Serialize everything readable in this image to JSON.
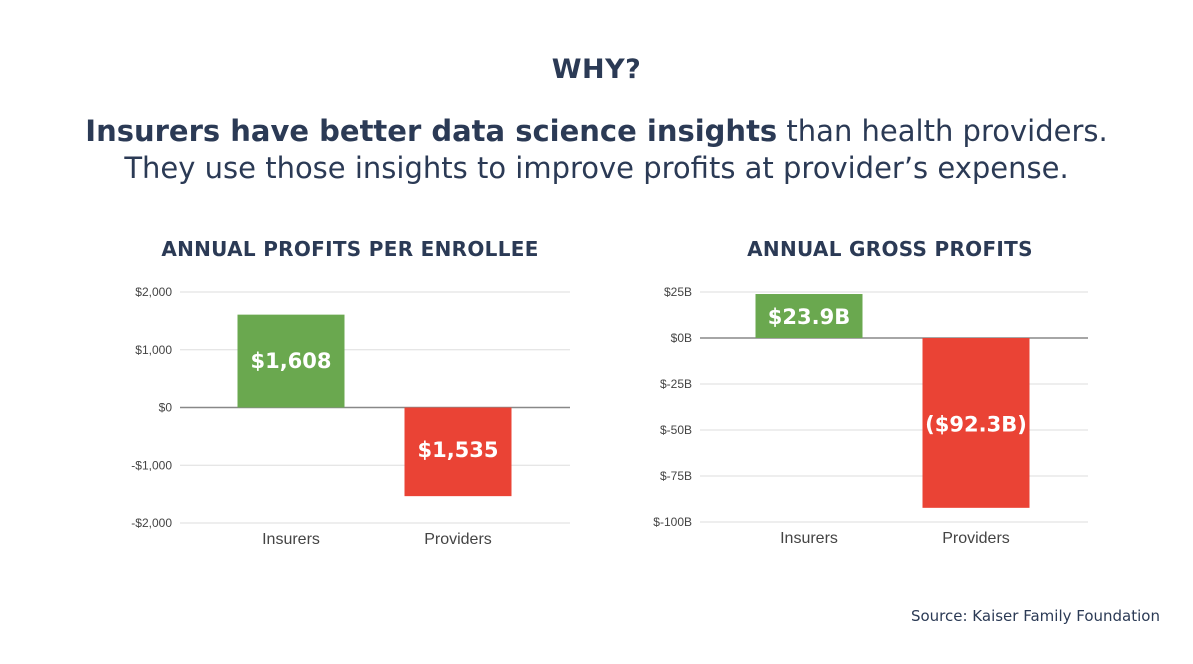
{
  "heading": "WHY?",
  "subheading": {
    "line1_bold": "Insurers have better data science insights",
    "line1_rest": " than health providers.",
    "line2": "They use those insights to improve profits at provider’s expense."
  },
  "source": "Source: Kaiser Family Foundation",
  "colors": {
    "positive": "#6aa84f",
    "negative": "#ea4335",
    "text": "#2b3a55",
    "grid": "#dddddd",
    "axis": "#888888"
  },
  "chart_data": [
    {
      "type": "bar",
      "title": "ANNUAL PROFITS PER ENROLLEE",
      "categories": [
        "Insurers",
        "Providers"
      ],
      "values": [
        1608,
        -1535
      ],
      "data_labels": [
        "$1,608",
        "$1,535"
      ],
      "yticks": [
        2000,
        1000,
        0,
        -1000,
        -2000
      ],
      "ytick_labels": [
        "$2,000",
        "$1,000",
        "$0",
        "-$1,000",
        "-$2,000"
      ],
      "ylim": [
        -2000,
        2000
      ],
      "grid": true
    },
    {
      "type": "bar",
      "title": "ANNUAL GROSS PROFITS",
      "categories": [
        "Insurers",
        "Providers"
      ],
      "values": [
        23.9,
        -92.3
      ],
      "data_labels": [
        "$23.9B",
        "($92.3B)"
      ],
      "yticks": [
        25,
        0,
        -25,
        -50,
        -75,
        -100
      ],
      "ytick_labels": [
        "$25B",
        "$0B",
        "$-25B",
        "$-50B",
        "$-75B",
        "$-100B"
      ],
      "ylim": [
        -100,
        25
      ],
      "grid": true
    }
  ]
}
